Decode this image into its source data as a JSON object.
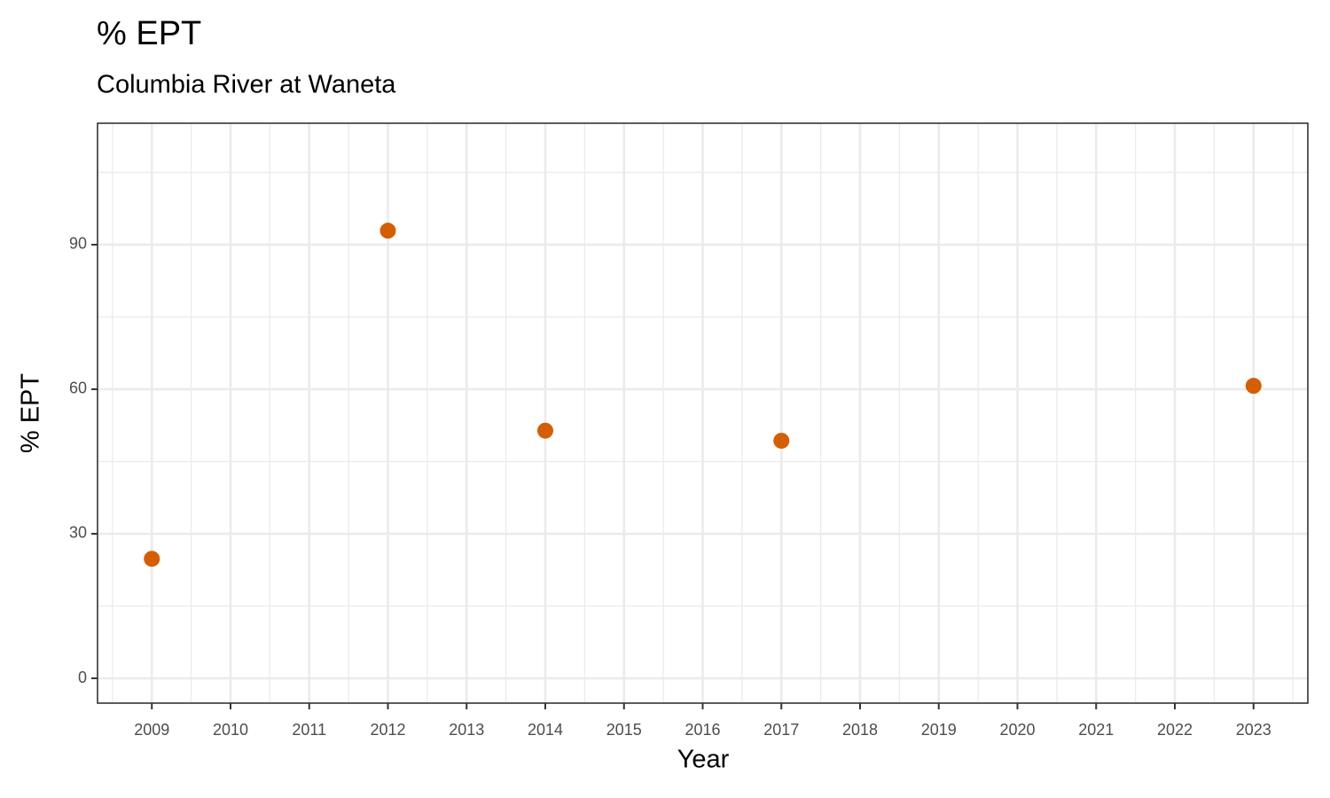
{
  "chart_data": {
    "type": "scatter",
    "title": "% EPT",
    "subtitle": "Columbia River at Waneta",
    "x_label": "Year",
    "y_label": "% EPT",
    "x": [
      2009,
      2012,
      2014,
      2017,
      2023
    ],
    "series": [
      {
        "name": "% EPT",
        "color": "#D55E00",
        "values": [
          24.8,
          92.9,
          51.4,
          49.3,
          60.7
        ]
      }
    ],
    "xlim": [
      2008.31,
      2023.69
    ],
    "xticks": [
      2009,
      2010,
      2011,
      2012,
      2013,
      2014,
      2015,
      2016,
      2017,
      2018,
      2019,
      2020,
      2021,
      2022,
      2023
    ],
    "ylim": [
      -5.15,
      115.2
    ],
    "yticks": [
      0,
      30,
      60,
      90
    ],
    "grid": true
  }
}
